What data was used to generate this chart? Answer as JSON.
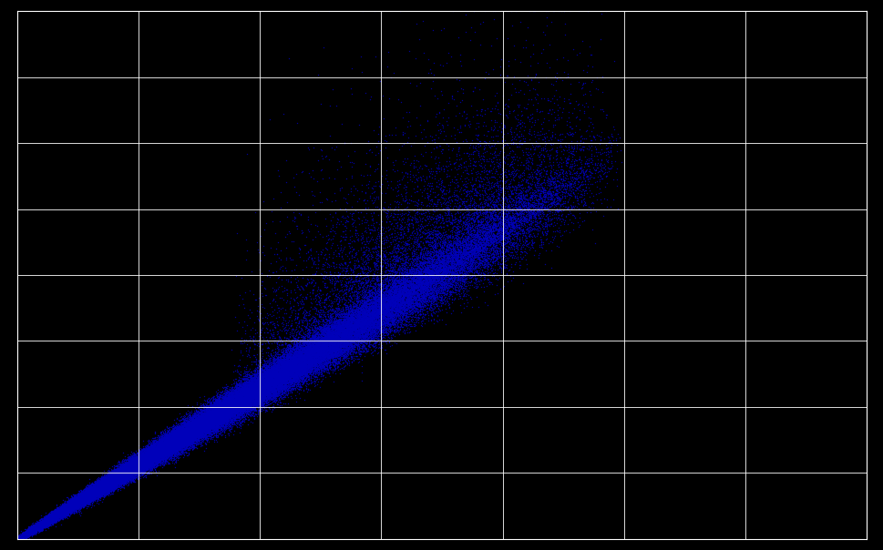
{
  "background_color": "#000000",
  "plot_bg_color": "#000000",
  "grid_color": "#ffffff",
  "dot_color": "#0000BB",
  "dot_size": 1.0,
  "dot_alpha": 0.8,
  "n_points": 100000,
  "grid_linewidth": 0.6,
  "figsize": [
    9.7,
    6.04
  ],
  "dpi": 100,
  "spine_color": "#ffffff",
  "n_xticks": 8,
  "n_yticks": 9
}
